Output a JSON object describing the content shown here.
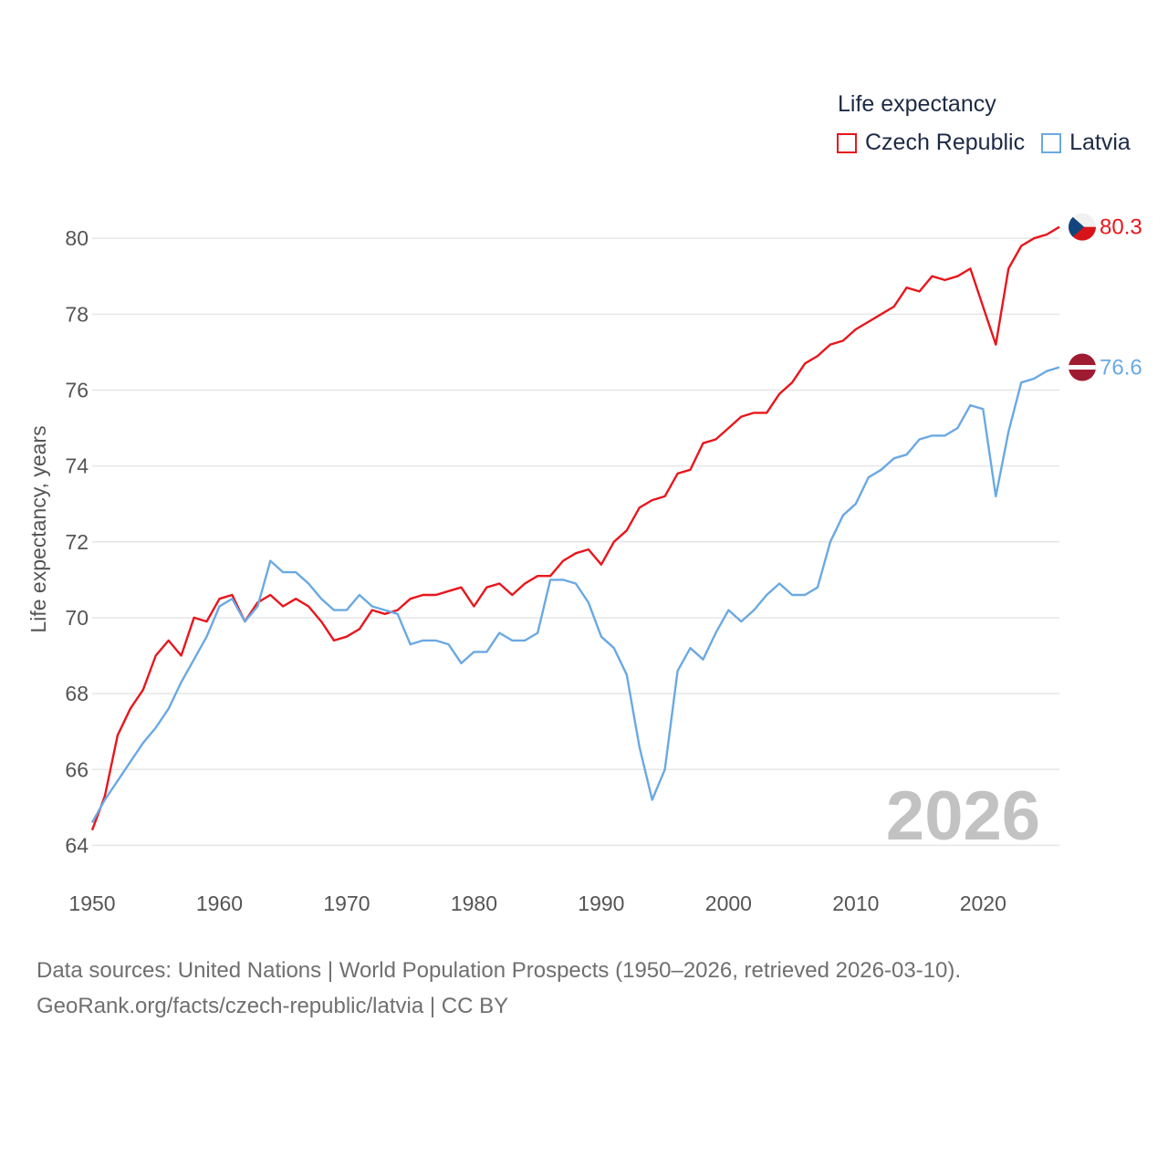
{
  "legend": {
    "title": "Life expectancy",
    "items": [
      {
        "name": "Czech Republic",
        "color": "#e8161c"
      },
      {
        "name": "Latvia",
        "color": "#6aa9e3"
      }
    ]
  },
  "source": {
    "line1": "Data sources: United Nations | World Population Prospects (1950–2026, retrieved 2026-03-10).",
    "line2": "GeoRank.org/facts/czech-republic/latvia | CC BY"
  },
  "chart_data": {
    "type": "line",
    "title": "Life expectancy",
    "xlabel": "",
    "ylabel": "Life expectancy, years",
    "watermark_year": "2026",
    "xlim": [
      1950,
      2026
    ],
    "ylim": [
      63,
      82
    ],
    "x_ticks": [
      1950,
      1960,
      1970,
      1980,
      1990,
      2000,
      2010,
      2020
    ],
    "y_ticks": [
      64,
      66,
      68,
      70,
      72,
      74,
      76,
      78,
      80
    ],
    "grid": true,
    "legend_position": "top-right",
    "x": [
      1950,
      1951,
      1952,
      1953,
      1954,
      1955,
      1956,
      1957,
      1958,
      1959,
      1960,
      1961,
      1962,
      1963,
      1964,
      1965,
      1966,
      1967,
      1968,
      1969,
      1970,
      1971,
      1972,
      1973,
      1974,
      1975,
      1976,
      1977,
      1978,
      1979,
      1980,
      1981,
      1982,
      1983,
      1984,
      1985,
      1986,
      1987,
      1988,
      1989,
      1990,
      1991,
      1992,
      1993,
      1994,
      1995,
      1996,
      1997,
      1998,
      1999,
      2000,
      2001,
      2002,
      2003,
      2004,
      2005,
      2006,
      2007,
      2008,
      2009,
      2010,
      2011,
      2012,
      2013,
      2014,
      2015,
      2016,
      2017,
      2018,
      2019,
      2020,
      2021,
      2022,
      2023,
      2024,
      2025,
      2026
    ],
    "series": [
      {
        "name": "Czech Republic",
        "color": "#e8161c",
        "end_label": "80.3",
        "values": [
          64.4,
          65.3,
          66.9,
          67.6,
          68.1,
          69.0,
          69.4,
          69.0,
          70.0,
          69.9,
          70.5,
          70.6,
          69.9,
          70.4,
          70.6,
          70.3,
          70.5,
          70.3,
          69.9,
          69.4,
          69.5,
          69.7,
          70.2,
          70.1,
          70.2,
          70.5,
          70.6,
          70.6,
          70.7,
          70.8,
          70.3,
          70.8,
          70.9,
          70.6,
          70.9,
          71.1,
          71.1,
          71.5,
          71.7,
          71.8,
          71.4,
          72.0,
          72.3,
          72.9,
          73.1,
          73.2,
          73.8,
          73.9,
          74.6,
          74.7,
          75.0,
          75.3,
          75.4,
          75.4,
          75.9,
          76.2,
          76.7,
          76.9,
          77.2,
          77.3,
          77.6,
          77.8,
          78.0,
          78.2,
          78.7,
          78.6,
          79.0,
          78.9,
          79.0,
          79.2,
          78.2,
          77.2,
          79.2,
          79.8,
          80.0,
          80.1,
          80.3
        ]
      },
      {
        "name": "Latvia",
        "color": "#6aa9e3",
        "end_label": "76.6",
        "values": [
          64.6,
          65.2,
          65.7,
          66.2,
          66.7,
          67.1,
          67.6,
          68.3,
          68.9,
          69.5,
          70.3,
          70.5,
          69.9,
          70.3,
          71.5,
          71.2,
          71.2,
          70.9,
          70.5,
          70.2,
          70.2,
          70.6,
          70.3,
          70.2,
          70.1,
          69.3,
          69.4,
          69.4,
          69.3,
          68.8,
          69.1,
          69.1,
          69.6,
          69.4,
          69.4,
          69.6,
          71.0,
          71.0,
          70.9,
          70.4,
          69.5,
          69.2,
          68.5,
          66.6,
          65.2,
          66.0,
          68.6,
          69.2,
          68.9,
          69.6,
          70.2,
          69.9,
          70.2,
          70.6,
          70.9,
          70.6,
          70.6,
          70.8,
          72.0,
          72.7,
          73.0,
          73.7,
          73.9,
          74.2,
          74.3,
          74.7,
          74.8,
          74.8,
          75.0,
          75.6,
          75.5,
          73.2,
          74.9,
          76.2,
          76.3,
          76.5,
          76.6
        ]
      }
    ]
  }
}
